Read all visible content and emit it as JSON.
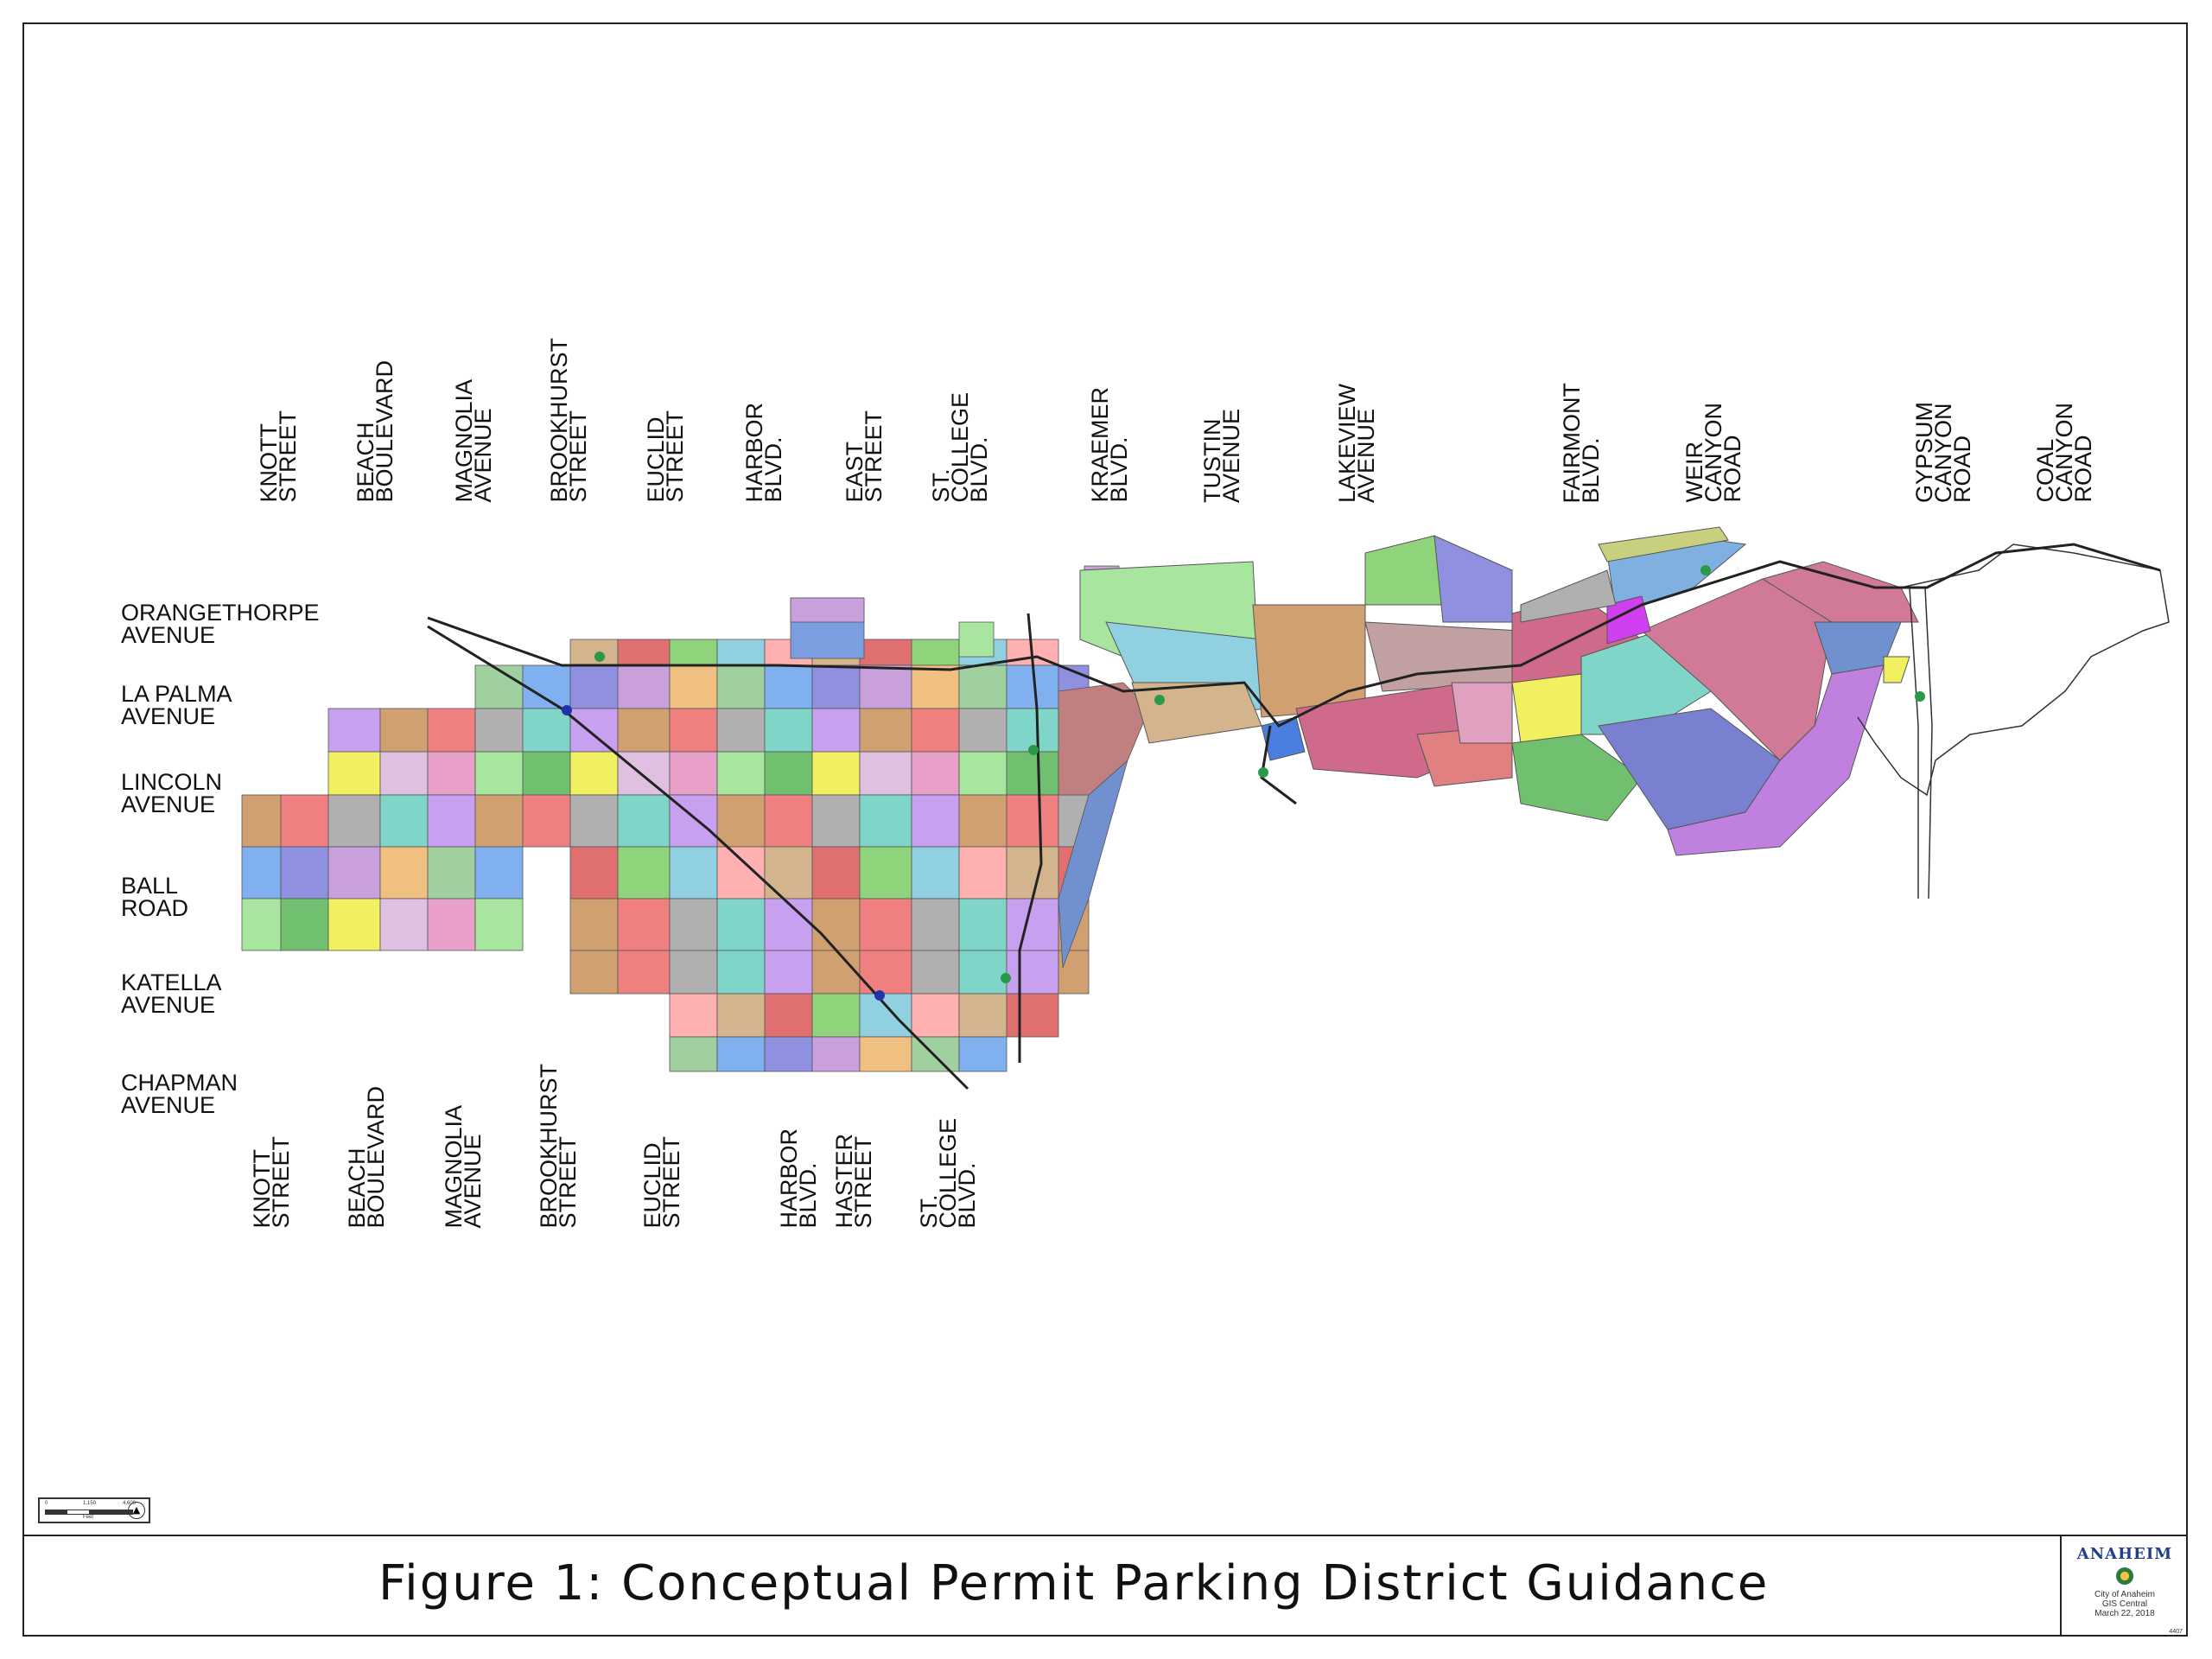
{
  "title": "Figure 1: Conceptual Permit Parking District Guidance",
  "logo": {
    "wordmark": "ANAHEIM",
    "line1": "City of Anaheim",
    "line2": "GIS Central",
    "date": "March 22, 2018",
    "map_id": "4407"
  },
  "scale": {
    "zero": "0",
    "mid": "1,150",
    "max": "4,600",
    "unit": "Feet"
  },
  "top_streets": [
    {
      "lines": [
        "KNOTT",
        "STREET"
      ]
    },
    {
      "lines": [
        "BEACH",
        "BOULEVARD"
      ]
    },
    {
      "lines": [
        "MAGNOLIA",
        "AVENUE"
      ]
    },
    {
      "lines": [
        "BROOKHURST",
        "STREET"
      ]
    },
    {
      "lines": [
        "EUCLID",
        "STREET"
      ]
    },
    {
      "lines": [
        "HARBOR",
        "BLVD."
      ]
    },
    {
      "lines": [
        "EAST",
        "STREET"
      ]
    },
    {
      "lines": [
        "ST.",
        "COLLEGE",
        "BLVD."
      ]
    },
    {
      "lines": [
        "KRAEMER",
        "BLVD."
      ]
    },
    {
      "lines": [
        "TUSTIN",
        "AVENUE"
      ]
    },
    {
      "lines": [
        "LAKEVIEW",
        "AVENUE"
      ]
    },
    {
      "lines": [
        "FAIRMONT",
        "BLVD."
      ]
    },
    {
      "lines": [
        "WEIR",
        "CANYON",
        "ROAD"
      ]
    },
    {
      "lines": [
        "GYPSUM",
        "CANYON",
        "ROAD"
      ]
    },
    {
      "lines": [
        "COAL",
        "CANYON",
        "ROAD"
      ]
    }
  ],
  "bottom_streets": [
    {
      "lines": [
        "KNOTT",
        "STREET"
      ]
    },
    {
      "lines": [
        "BEACH",
        "BOULEVARD"
      ]
    },
    {
      "lines": [
        "MAGNOLIA",
        "AVENUE"
      ]
    },
    {
      "lines": [
        "BROOKHURST",
        "STREET"
      ]
    },
    {
      "lines": [
        "EUCLID",
        "STREET"
      ]
    },
    {
      "lines": [
        "HARBOR",
        "BLVD."
      ]
    },
    {
      "lines": [
        "HASTER",
        "STREET"
      ]
    },
    {
      "lines": [
        "ST.",
        "COLLEGE",
        "BLVD."
      ]
    }
  ],
  "left_streets": [
    {
      "lines": [
        "ORANGETHORPE",
        "AVENUE"
      ]
    },
    {
      "lines": [
        "LA PALMA",
        "AVENUE"
      ]
    },
    {
      "lines": [
        "LINCOLN",
        "AVENUE"
      ]
    },
    {
      "lines": [
        "BALL",
        "ROAD"
      ]
    },
    {
      "lines": [
        "KATELLA",
        "AVENUE"
      ]
    },
    {
      "lines": [
        "CHAPMAN",
        "AVENUE"
      ]
    }
  ],
  "palette": [
    "#e8a0c8",
    "#7fd6c8",
    "#c9a0dc",
    "#8fd47a",
    "#f0f060",
    "#f08080",
    "#80b0f0",
    "#d4b48c",
    "#a8e6a0",
    "#c8a0f0",
    "#f0c080",
    "#90d0e0",
    "#e0c0e0",
    "#b0b0b0",
    "#9090e0",
    "#e07070",
    "#70c070",
    "#d0a070",
    "#a0d0a0",
    "#ffb0b0"
  ],
  "colors": {
    "freeway": "#222222",
    "boundary": "#333333"
  }
}
